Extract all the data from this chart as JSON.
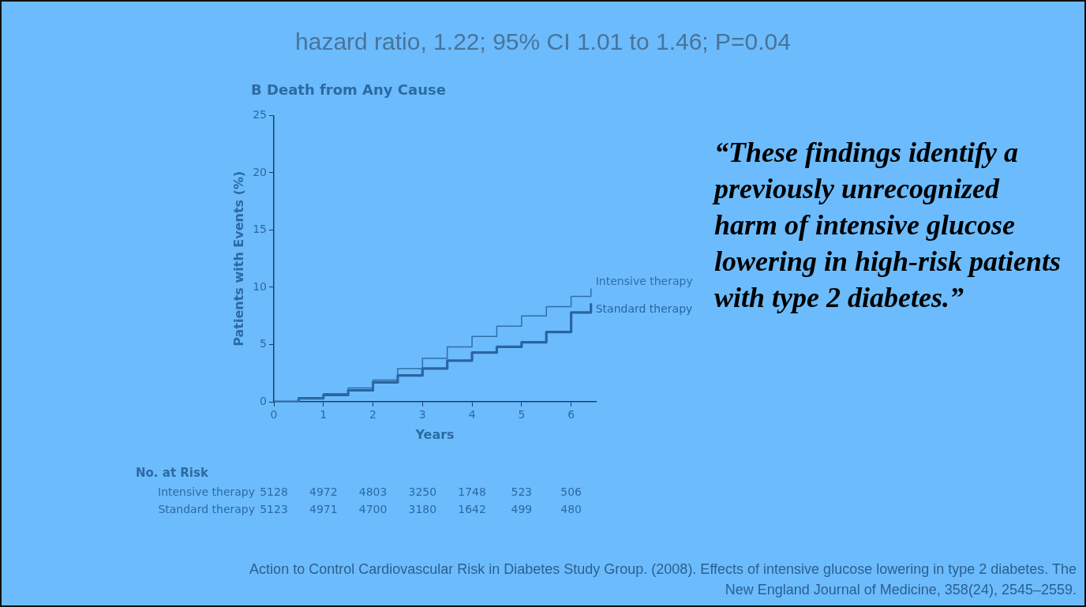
{
  "chart_data": {
    "type": "step",
    "title": "hazard ratio, 1.22; 95% CI 1.01 to 1.46; P=0.04",
    "subtitle": "B Death from Any Cause",
    "xlabel": "Years",
    "ylabel": "Patients with Events (%)",
    "series": [
      {
        "name": "Intensive therapy",
        "color": "#2f6ea8",
        "x": [
          0,
          0.5,
          1,
          1.5,
          2,
          2.5,
          3,
          3.5,
          4,
          4.5,
          5,
          5.5,
          6,
          6.4
        ],
        "values": [
          0,
          0.3,
          0.7,
          1.2,
          1.9,
          2.9,
          3.8,
          4.8,
          5.7,
          6.6,
          7.5,
          8.3,
          9.2,
          9.9
        ]
      },
      {
        "name": "Standard therapy",
        "color": "#2a64a0",
        "x": [
          0,
          0.5,
          1,
          1.5,
          2,
          2.5,
          3,
          3.5,
          4,
          4.5,
          5,
          5.5,
          6,
          6.4
        ],
        "values": [
          0,
          0.3,
          0.6,
          1.0,
          1.7,
          2.3,
          2.9,
          3.6,
          4.3,
          4.8,
          5.2,
          6.1,
          7.8,
          8.6
        ]
      }
    ],
    "xlim": [
      0,
      6.5
    ],
    "xticks": [
      0,
      1,
      2,
      3,
      4,
      5,
      6
    ],
    "ylim": [
      0,
      25
    ],
    "yticks": [
      0,
      5,
      10,
      15,
      20,
      25
    ],
    "grid": false,
    "legend": false,
    "marker": "none",
    "line_style": "solid",
    "annotations": [
      "“These findings identify a previously unrecognized harm of intensive glucose lowering in high-risk patients with type 2 diabetes.”",
      "No. at Risk",
      "Intensive therapy",
      "5128",
      "4972",
      "4803",
      "3250",
      "1748",
      "523",
      "506",
      "Standard therapy",
      "5123",
      "4971",
      "4700",
      "3180",
      "1642",
      "499",
      "480",
      "Action to Control Cardiovascular Risk in Diabetes Study Group. (2008). Effects of intensive glucose lowering in type 2 diabetes. The New England Journal of Medicine, 358(24), 2545–2559."
    ]
  }
}
